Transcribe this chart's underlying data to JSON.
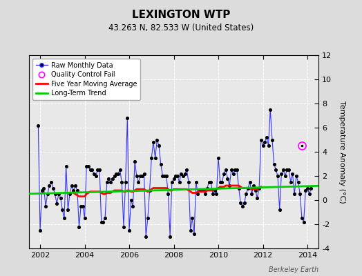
{
  "title": "LEXINGTON WTP",
  "subtitle": "43.263 N, 82.533 W (United States)",
  "ylabel": "Temperature Anomaly (°C)",
  "credit": "Berkeley Earth",
  "ylim": [
    -4,
    12
  ],
  "yticks": [
    -4,
    -2,
    0,
    2,
    4,
    6,
    8,
    10,
    12
  ],
  "xlim": [
    2001.5,
    2014.5
  ],
  "xticks": [
    2002,
    2004,
    2006,
    2008,
    2010,
    2012,
    2014
  ],
  "bg_color": "#dcdcdc",
  "plot_bg_color": "#e8e8e8",
  "raw_color": "#3333ff",
  "dot_color": "#000000",
  "ma_color": "#ff0000",
  "trend_color": "#00cc00",
  "qc_color": "#ff00ff",
  "raw_data": [
    [
      2001.917,
      6.2
    ],
    [
      2002.0,
      -2.5
    ],
    [
      2002.083,
      0.8
    ],
    [
      2002.167,
      1.0
    ],
    [
      2002.25,
      -0.5
    ],
    [
      2002.333,
      0.5
    ],
    [
      2002.417,
      1.2
    ],
    [
      2002.5,
      1.5
    ],
    [
      2002.583,
      1.0
    ],
    [
      2002.667,
      0.5
    ],
    [
      2002.75,
      -0.3
    ],
    [
      2002.833,
      0.5
    ],
    [
      2002.917,
      0.2
    ],
    [
      2003.0,
      -0.8
    ],
    [
      2003.083,
      -1.5
    ],
    [
      2003.167,
      2.8
    ],
    [
      2003.25,
      -0.8
    ],
    [
      2003.333,
      0.5
    ],
    [
      2003.417,
      1.2
    ],
    [
      2003.5,
      0.8
    ],
    [
      2003.583,
      1.2
    ],
    [
      2003.667,
      0.8
    ],
    [
      2003.75,
      -2.2
    ],
    [
      2003.833,
      -0.5
    ],
    [
      2003.917,
      -0.5
    ],
    [
      2004.0,
      -1.5
    ],
    [
      2004.083,
      2.8
    ],
    [
      2004.167,
      2.8
    ],
    [
      2004.25,
      2.5
    ],
    [
      2004.333,
      2.5
    ],
    [
      2004.417,
      2.2
    ],
    [
      2004.5,
      2.0
    ],
    [
      2004.583,
      2.5
    ],
    [
      2004.667,
      2.5
    ],
    [
      2004.75,
      -1.8
    ],
    [
      2004.833,
      -1.8
    ],
    [
      2004.917,
      -1.5
    ],
    [
      2005.0,
      1.5
    ],
    [
      2005.083,
      1.8
    ],
    [
      2005.167,
      1.5
    ],
    [
      2005.25,
      1.8
    ],
    [
      2005.333,
      2.0
    ],
    [
      2005.417,
      2.2
    ],
    [
      2005.5,
      2.2
    ],
    [
      2005.583,
      2.5
    ],
    [
      2005.667,
      1.5
    ],
    [
      2005.75,
      -2.2
    ],
    [
      2005.833,
      1.5
    ],
    [
      2005.917,
      6.8
    ],
    [
      2006.0,
      -2.5
    ],
    [
      2006.083,
      0.0
    ],
    [
      2006.167,
      -0.5
    ],
    [
      2006.25,
      3.2
    ],
    [
      2006.333,
      2.0
    ],
    [
      2006.417,
      1.5
    ],
    [
      2006.5,
      2.0
    ],
    [
      2006.583,
      2.0
    ],
    [
      2006.667,
      2.2
    ],
    [
      2006.75,
      -3.0
    ],
    [
      2006.833,
      -1.5
    ],
    [
      2006.917,
      0.8
    ],
    [
      2007.0,
      3.5
    ],
    [
      2007.083,
      4.8
    ],
    [
      2007.167,
      3.5
    ],
    [
      2007.25,
      5.0
    ],
    [
      2007.333,
      4.5
    ],
    [
      2007.417,
      3.0
    ],
    [
      2007.5,
      2.0
    ],
    [
      2007.583,
      2.0
    ],
    [
      2007.667,
      2.0
    ],
    [
      2007.75,
      0.5
    ],
    [
      2007.833,
      -3.0
    ],
    [
      2007.917,
      1.5
    ],
    [
      2008.0,
      1.8
    ],
    [
      2008.083,
      2.0
    ],
    [
      2008.167,
      2.0
    ],
    [
      2008.25,
      1.5
    ],
    [
      2008.333,
      2.2
    ],
    [
      2008.417,
      2.0
    ],
    [
      2008.5,
      2.2
    ],
    [
      2008.583,
      2.5
    ],
    [
      2008.667,
      1.5
    ],
    [
      2008.75,
      -2.5
    ],
    [
      2008.833,
      -1.5
    ],
    [
      2008.917,
      -2.8
    ],
    [
      2009.0,
      1.5
    ],
    [
      2009.083,
      0.5
    ],
    [
      2009.167,
      0.8
    ],
    [
      2009.25,
      0.8
    ],
    [
      2009.333,
      0.8
    ],
    [
      2009.417,
      0.5
    ],
    [
      2009.5,
      1.0
    ],
    [
      2009.583,
      1.5
    ],
    [
      2009.667,
      1.5
    ],
    [
      2009.75,
      0.5
    ],
    [
      2009.833,
      0.8
    ],
    [
      2009.917,
      0.5
    ],
    [
      2010.0,
      3.5
    ],
    [
      2010.083,
      1.5
    ],
    [
      2010.167,
      1.5
    ],
    [
      2010.25,
      2.2
    ],
    [
      2010.333,
      2.5
    ],
    [
      2010.417,
      1.8
    ],
    [
      2010.5,
      1.2
    ],
    [
      2010.583,
      2.5
    ],
    [
      2010.667,
      2.2
    ],
    [
      2010.75,
      2.5
    ],
    [
      2010.833,
      2.5
    ],
    [
      2010.917,
      1.0
    ],
    [
      2011.0,
      -0.2
    ],
    [
      2011.083,
      -0.5
    ],
    [
      2011.167,
      -0.2
    ],
    [
      2011.25,
      0.5
    ],
    [
      2011.333,
      1.0
    ],
    [
      2011.417,
      1.5
    ],
    [
      2011.5,
      0.5
    ],
    [
      2011.583,
      1.2
    ],
    [
      2011.667,
      0.8
    ],
    [
      2011.75,
      0.2
    ],
    [
      2011.833,
      1.0
    ],
    [
      2011.917,
      5.0
    ],
    [
      2012.0,
      4.5
    ],
    [
      2012.083,
      4.8
    ],
    [
      2012.167,
      5.2
    ],
    [
      2012.25,
      4.5
    ],
    [
      2012.333,
      7.5
    ],
    [
      2012.417,
      5.0
    ],
    [
      2012.5,
      3.0
    ],
    [
      2012.583,
      2.5
    ],
    [
      2012.667,
      2.0
    ],
    [
      2012.75,
      -0.8
    ],
    [
      2012.833,
      2.2
    ],
    [
      2012.917,
      2.5
    ],
    [
      2013.0,
      2.0
    ],
    [
      2013.083,
      2.5
    ],
    [
      2013.167,
      2.5
    ],
    [
      2013.25,
      1.5
    ],
    [
      2013.333,
      2.2
    ],
    [
      2013.417,
      0.5
    ],
    [
      2013.5,
      2.0
    ],
    [
      2013.583,
      1.5
    ],
    [
      2013.667,
      0.5
    ],
    [
      2013.75,
      -1.5
    ],
    [
      2013.833,
      -1.8
    ],
    [
      2013.917,
      0.8
    ],
    [
      2014.0,
      1.0
    ],
    [
      2014.083,
      0.5
    ],
    [
      2014.167,
      1.0
    ]
  ],
  "qc_fail": [
    [
      2013.75,
      4.5
    ]
  ],
  "ma_data": [
    [
      2003.5,
      0.6
    ],
    [
      2003.583,
      0.5
    ],
    [
      2003.667,
      0.4
    ],
    [
      2003.75,
      0.3
    ],
    [
      2003.833,
      0.3
    ],
    [
      2003.917,
      0.3
    ],
    [
      2004.0,
      0.3
    ],
    [
      2004.083,
      0.5
    ],
    [
      2004.167,
      0.6
    ],
    [
      2004.25,
      0.7
    ],
    [
      2004.333,
      0.7
    ],
    [
      2004.417,
      0.7
    ],
    [
      2004.5,
      0.7
    ],
    [
      2004.583,
      0.7
    ],
    [
      2004.667,
      0.7
    ],
    [
      2004.75,
      0.6
    ],
    [
      2004.833,
      0.5
    ],
    [
      2004.917,
      0.5
    ],
    [
      2005.0,
      0.6
    ],
    [
      2005.083,
      0.6
    ],
    [
      2005.167,
      0.6
    ],
    [
      2005.25,
      0.7
    ],
    [
      2005.333,
      0.8
    ],
    [
      2005.417,
      0.8
    ],
    [
      2005.5,
      0.8
    ],
    [
      2005.583,
      0.8
    ],
    [
      2005.667,
      0.8
    ],
    [
      2005.75,
      0.7
    ],
    [
      2005.833,
      0.7
    ],
    [
      2005.917,
      0.8
    ],
    [
      2006.0,
      0.8
    ],
    [
      2006.083,
      0.7
    ],
    [
      2006.167,
      0.7
    ],
    [
      2006.25,
      0.8
    ],
    [
      2006.333,
      0.9
    ],
    [
      2006.417,
      0.9
    ],
    [
      2006.5,
      0.9
    ],
    [
      2006.583,
      0.9
    ],
    [
      2006.667,
      0.9
    ],
    [
      2006.75,
      0.8
    ],
    [
      2006.833,
      0.7
    ],
    [
      2006.917,
      0.8
    ],
    [
      2007.0,
      0.9
    ],
    [
      2007.083,
      1.0
    ],
    [
      2007.167,
      1.0
    ],
    [
      2007.25,
      1.0
    ],
    [
      2007.333,
      1.0
    ],
    [
      2007.417,
      1.0
    ],
    [
      2007.5,
      1.0
    ],
    [
      2007.583,
      1.0
    ],
    [
      2007.667,
      1.0
    ],
    [
      2007.75,
      0.9
    ],
    [
      2007.833,
      0.8
    ],
    [
      2007.917,
      0.8
    ],
    [
      2008.0,
      0.9
    ],
    [
      2008.083,
      0.9
    ],
    [
      2008.167,
      0.9
    ],
    [
      2008.25,
      0.9
    ],
    [
      2008.333,
      0.9
    ],
    [
      2008.417,
      0.9
    ],
    [
      2008.5,
      0.9
    ],
    [
      2008.583,
      0.9
    ],
    [
      2008.667,
      0.8
    ],
    [
      2008.75,
      0.7
    ],
    [
      2008.833,
      0.6
    ],
    [
      2008.917,
      0.6
    ],
    [
      2009.0,
      0.6
    ],
    [
      2009.083,
      0.7
    ],
    [
      2009.167,
      0.7
    ],
    [
      2009.25,
      0.7
    ],
    [
      2009.333,
      0.7
    ],
    [
      2009.417,
      0.7
    ],
    [
      2009.5,
      0.8
    ],
    [
      2009.583,
      0.8
    ],
    [
      2009.667,
      0.8
    ],
    [
      2009.75,
      0.8
    ],
    [
      2009.833,
      0.9
    ],
    [
      2009.917,
      0.9
    ],
    [
      2010.0,
      1.0
    ],
    [
      2010.083,
      1.1
    ],
    [
      2010.167,
      1.1
    ],
    [
      2010.25,
      1.1
    ],
    [
      2010.333,
      1.2
    ],
    [
      2010.417,
      1.2
    ],
    [
      2010.5,
      1.2
    ],
    [
      2010.583,
      1.2
    ],
    [
      2010.667,
      1.2
    ],
    [
      2010.75,
      1.2
    ],
    [
      2010.833,
      1.2
    ],
    [
      2010.917,
      1.2
    ],
    [
      2011.0,
      1.1
    ],
    [
      2011.083,
      1.0
    ],
    [
      2011.167,
      1.0
    ],
    [
      2011.25,
      1.0
    ],
    [
      2011.333,
      1.0
    ],
    [
      2011.417,
      1.0
    ],
    [
      2011.5,
      0.9
    ],
    [
      2011.583,
      0.9
    ],
    [
      2011.667,
      0.9
    ],
    [
      2011.75,
      0.9
    ],
    [
      2011.833,
      1.0
    ],
    [
      2011.917,
      1.1
    ]
  ],
  "trend_x": [
    2001.5,
    2014.5
  ],
  "trend_y": [
    0.52,
    1.18
  ]
}
